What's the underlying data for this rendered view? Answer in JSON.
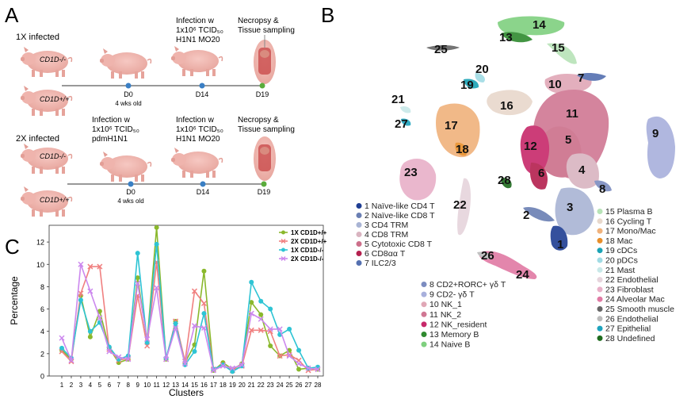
{
  "panel_labels": {
    "a": "A",
    "b": "B",
    "c": "C"
  },
  "panel_a": {
    "row1": {
      "title": "1X infected",
      "pig_top_label": "CD1D-/-",
      "pig_bottom_label": "CD1D+/+",
      "d0": "D0",
      "d0_sub": "4 wks old",
      "d14": "D14",
      "d19": "D19",
      "infection_l1": "Infection w",
      "infection_l2": "1x10⁶ TCID₅₀",
      "infection_l3": "H1N1 MO20",
      "necropsy_l1": "Necropsy &",
      "necropsy_l2": "Tissue sampling"
    },
    "row2": {
      "title": "2X infected",
      "pig_top_label": "CD1D-/-",
      "pig_bottom_label": "CD1D+/+",
      "d0": "D0",
      "d0_sub": "4 wks old",
      "d14": "D14",
      "d19": "D19",
      "inf1_l1": "Infection w",
      "inf1_l2": "1x10⁶ TCID₅₀",
      "inf1_l3": "pdmH1N1",
      "inf2_l1": "Infection w",
      "inf2_l2": "1x10⁶ TCID₅₀",
      "inf2_l3": "H1N1 MO20",
      "necropsy_l1": "Necropsy &",
      "necropsy_l2": "Tissue sampling"
    }
  },
  "panel_b": {
    "cluster_numbers": [
      "1",
      "2",
      "3",
      "4",
      "5",
      "6",
      "7",
      "8",
      "9",
      "10",
      "11",
      "12",
      "13",
      "14",
      "15",
      "16",
      "17",
      "18",
      "19",
      "20",
      "21",
      "22",
      "23",
      "24",
      "25",
      "26",
      "27",
      "28"
    ],
    "legend_col1": [
      {
        "label": "1 Naïve-like CD4 T",
        "color": "#1f3e93"
      },
      {
        "label": "2 Naïve-like CD8 T",
        "color": "#6a7fb3"
      },
      {
        "label": "3 CD4 TRM",
        "color": "#a9b4d4"
      },
      {
        "label": "4 CD8 TRM",
        "color": "#d9b4c0"
      },
      {
        "label": "5 Cytotoxic CD8 T",
        "color": "#cc6f8a"
      },
      {
        "label": "6 CD8αα T",
        "color": "#b4204e"
      },
      {
        "label": "7 ILC2/3",
        "color": "#5470b0"
      }
    ],
    "legend_col2": [
      {
        "label": "8 CD2+RORC+ γδ T",
        "color": "#7c8cc0"
      },
      {
        "label": "9 CD2- γδ T",
        "color": "#a8b0dc"
      },
      {
        "label": "10 NK_1",
        "color": "#e0a7b6"
      },
      {
        "label": "11 NK_2",
        "color": "#d07793"
      },
      {
        "label": "12 NK_resident",
        "color": "#c7296a"
      },
      {
        "label": "13 Memory B",
        "color": "#2f8a2f"
      },
      {
        "label": "14 Naive B",
        "color": "#7fd07f"
      }
    ],
    "legend_col3": [
      {
        "label": "15 Plasma B",
        "color": "#b7e3b7"
      },
      {
        "label": "16 Cycling T",
        "color": "#e8d8cc"
      },
      {
        "label": "17 Mono/Mac",
        "color": "#f0b27c"
      },
      {
        "label": "18 Mac",
        "color": "#e88e2a"
      },
      {
        "label": "19 cDCs",
        "color": "#1aa3b5"
      },
      {
        "label": "20 pDCs",
        "color": "#a0dbe4"
      },
      {
        "label": "21 Mast",
        "color": "#c8e8e8"
      },
      {
        "label": "22 Endothelial",
        "color": "#e6d4dc"
      },
      {
        "label": "23 Fibroblast",
        "color": "#e8b0c8"
      },
      {
        "label": "24 Alveolar Mac",
        "color": "#e07aa4"
      },
      {
        "label": "25 Smooth muscle",
        "color": "#666666"
      },
      {
        "label": "26 Endothelial",
        "color": "#bbbbbb"
      },
      {
        "label": "27 Epithelial",
        "color": "#1ea3bd"
      },
      {
        "label": "28 Undefined",
        "color": "#1d6b1d"
      }
    ]
  },
  "chart_data": {
    "type": "line",
    "title": "",
    "xlabel": "Clusters",
    "ylabel": "Percentage",
    "ylim": [
      0,
      13.5
    ],
    "yticks": [
      0,
      2,
      4,
      6,
      8,
      10,
      12
    ],
    "categories": [
      "1",
      "2",
      "3",
      "4",
      "5",
      "6",
      "7",
      "8",
      "9",
      "10",
      "11",
      "12",
      "13",
      "14",
      "15",
      "16",
      "17",
      "18",
      "19",
      "20",
      "21",
      "22",
      "23",
      "24",
      "25",
      "26",
      "27",
      "28"
    ],
    "series": [
      {
        "name": "1X CD1D+/+",
        "color": "#8ab82c",
        "marker": "circle",
        "values": [
          2.3,
          1.5,
          7.2,
          3.5,
          5.8,
          2.5,
          1.2,
          1.5,
          8.8,
          3.1,
          13.3,
          1.5,
          4.9,
          1.2,
          2.8,
          9.4,
          0.5,
          1.2,
          0.6,
          1.1,
          6.6,
          5.5,
          2.7,
          1.8,
          2.3,
          0.6,
          0.7,
          0.6
        ]
      },
      {
        "name": "2X CD1D+/+",
        "color": "#f08080",
        "marker": "x",
        "values": [
          2.2,
          1.3,
          7.4,
          9.8,
          9.8,
          2.4,
          1.4,
          1.6,
          7.2,
          2.7,
          10.2,
          1.5,
          4.9,
          1.3,
          7.6,
          6.5,
          0.6,
          1.0,
          0.5,
          0.9,
          4.1,
          4.1,
          4.0,
          1.8,
          1.9,
          1.4,
          0.5,
          0.6
        ]
      },
      {
        "name": "1X CD1D-/-",
        "color": "#2ec4d4",
        "marker": "circle",
        "values": [
          2.5,
          1.6,
          6.8,
          4.0,
          4.8,
          2.6,
          1.5,
          1.8,
          11.0,
          3.0,
          11.8,
          1.6,
          4.7,
          1.0,
          2.2,
          5.6,
          0.6,
          1.0,
          0.4,
          0.9,
          8.4,
          6.7,
          6.0,
          3.7,
          4.2,
          2.3,
          0.7,
          0.8
        ]
      },
      {
        "name": "2X CD1D-/-",
        "color": "#cc88ee",
        "marker": "x",
        "values": [
          3.4,
          1.4,
          10.0,
          7.6,
          5.2,
          2.2,
          1.7,
          1.5,
          8.3,
          3.3,
          7.9,
          1.5,
          4.3,
          1.1,
          4.5,
          4.3,
          0.5,
          0.9,
          0.7,
          1.0,
          5.6,
          5.1,
          4.2,
          4.2,
          1.8,
          1.1,
          0.7,
          0.6
        ]
      }
    ],
    "legend_placement": "top-right"
  }
}
